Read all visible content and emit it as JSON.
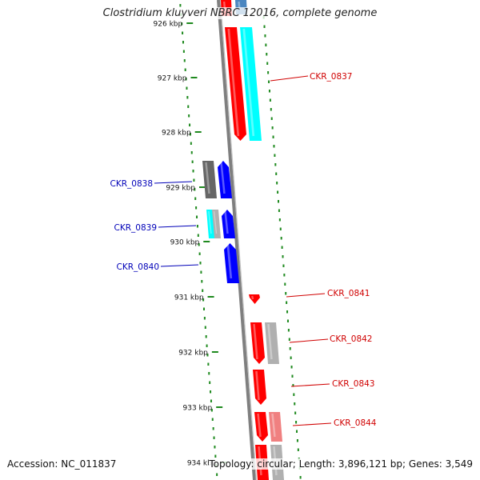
{
  "title": "Clostridium kluyveri NBRC 12016, complete genome",
  "footer": {
    "accession": "Accession: NC_011837",
    "summary": "Topology: circular; Length: 3,896,121 bp; Genes: 3,549"
  },
  "colors": {
    "backbone": "#7f7f7f",
    "tick": "#1f8a1f",
    "forward_label": "#d00000",
    "reverse_label": "#0000b8",
    "red": "#ff0000",
    "cyan": "#00ffff",
    "blue": "#0000ff",
    "gray": "#b0b0b0",
    "dark_gray": "#6d6d6d",
    "steel_blue": "#4a86c0",
    "pink": "#f08080"
  },
  "ticks": [
    {
      "label": "926 kbp"
    },
    {
      "label": "927 kbp"
    },
    {
      "label": "928 kbp"
    },
    {
      "label": "929 kbp"
    },
    {
      "label": "930 kbp"
    },
    {
      "label": "931 kbp"
    },
    {
      "label": "932 kbp"
    },
    {
      "label": "933 kbp"
    },
    {
      "label": "934 kbp"
    }
  ],
  "genes": [
    {
      "label": "CKR_0837",
      "strand": "forward"
    },
    {
      "label": "CKR_0838",
      "strand": "reverse"
    },
    {
      "label": "CKR_0839",
      "strand": "reverse"
    },
    {
      "label": "CKR_0840",
      "strand": "reverse"
    },
    {
      "label": "CKR_0841",
      "strand": "forward"
    },
    {
      "label": "CKR_0842",
      "strand": "forward"
    },
    {
      "label": "CKR_0843",
      "strand": "forward"
    },
    {
      "label": "CKR_0844",
      "strand": "forward"
    }
  ]
}
